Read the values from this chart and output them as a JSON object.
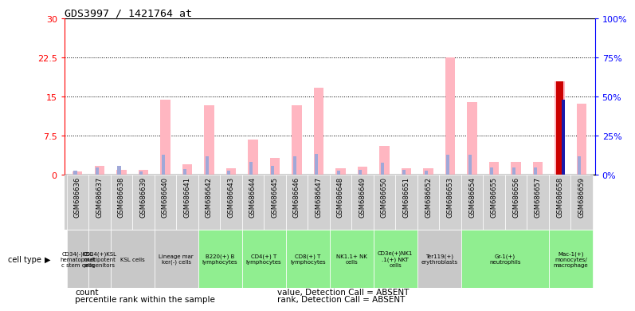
{
  "title": "GDS3997 / 1421764_at",
  "gsm_ids": [
    "GSM686636",
    "GSM686637",
    "GSM686638",
    "GSM686639",
    "GSM686640",
    "GSM686641",
    "GSM686642",
    "GSM686643",
    "GSM686644",
    "GSM686645",
    "GSM686646",
    "GSM686647",
    "GSM686648",
    "GSM686649",
    "GSM686650",
    "GSM686651",
    "GSM686652",
    "GSM686653",
    "GSM686654",
    "GSM686655",
    "GSM686656",
    "GSM686657",
    "GSM686658",
    "GSM686659"
  ],
  "value_absent": [
    0.7,
    1.8,
    1.0,
    0.9,
    14.5,
    2.0,
    13.3,
    1.3,
    6.8,
    3.3,
    13.3,
    16.7,
    1.3,
    1.5,
    5.5,
    1.3,
    1.3,
    22.5,
    14.0,
    2.5,
    2.5,
    2.5,
    18.0,
    13.7
  ],
  "rank_absent": [
    0.8,
    1.4,
    1.7,
    0.7,
    3.8,
    1.1,
    3.6,
    0.8,
    2.5,
    1.7,
    3.6,
    4.1,
    0.8,
    0.9,
    2.4,
    0.9,
    0.8,
    3.8,
    3.8,
    1.4,
    1.4,
    1.4,
    2.8,
    3.6
  ],
  "count_val": [
    0,
    0,
    0,
    0,
    0,
    0,
    0,
    0,
    0,
    0,
    0,
    0,
    0,
    0,
    0,
    0,
    0,
    0,
    0,
    0,
    0,
    0,
    18.0,
    0
  ],
  "percentile_rank": [
    0,
    0,
    0,
    0,
    0,
    0,
    0,
    0,
    0,
    0,
    0,
    0,
    0,
    0,
    0,
    0,
    0,
    0,
    0,
    0,
    0,
    0,
    14.5,
    0
  ],
  "ylim_left": [
    0,
    30
  ],
  "ylim_right": [
    0,
    100
  ],
  "yticks_left": [
    0,
    7.5,
    15,
    22.5,
    30
  ],
  "ytick_labels_left": [
    "0",
    "7.5",
    "15",
    "22.5",
    "30"
  ],
  "yticks_right": [
    0,
    25,
    50,
    75,
    100
  ],
  "ytick_labels_right": [
    "0%",
    "25%",
    "50%",
    "75%",
    "100%"
  ],
  "color_count": "#cc0000",
  "color_percentile": "#1a1aaa",
  "color_value_absent": "#ffb6c1",
  "color_rank_absent": "#a0a8d8",
  "groups": [
    {
      "cols": [
        0
      ],
      "color": "#c8c8c8",
      "label": "CD34(-)KSL\nhematopoiet\nc stem cells"
    },
    {
      "cols": [
        1
      ],
      "color": "#c8c8c8",
      "label": "CD34(+)KSL\nmultipotent\nprogenitors"
    },
    {
      "cols": [
        2,
        3
      ],
      "color": "#c8c8c8",
      "label": "KSL cells"
    },
    {
      "cols": [
        4,
        5
      ],
      "color": "#c8c8c8",
      "label": "Lineage mar\nker(-) cells"
    },
    {
      "cols": [
        6,
        7
      ],
      "color": "#90ee90",
      "label": "B220(+) B\nlymphocytes"
    },
    {
      "cols": [
        8,
        9
      ],
      "color": "#90ee90",
      "label": "CD4(+) T\nlymphocytes"
    },
    {
      "cols": [
        10,
        11
      ],
      "color": "#90ee90",
      "label": "CD8(+) T\nlymphocytes"
    },
    {
      "cols": [
        12,
        13
      ],
      "color": "#90ee90",
      "label": "NK1.1+ NK\ncells"
    },
    {
      "cols": [
        14,
        15
      ],
      "color": "#90ee90",
      "label": "CD3e(+)NK1\n.1(+) NKT\ncells"
    },
    {
      "cols": [
        16,
        17
      ],
      "color": "#c8c8c8",
      "label": "Ter119(+)\nerythroblasts"
    },
    {
      "cols": [
        18,
        19,
        20,
        21
      ],
      "color": "#90ee90",
      "label": "Gr-1(+)\nneutrophils"
    },
    {
      "cols": [
        22,
        23
      ],
      "color": "#90ee90",
      "label": "Mac-1(+)\nmonocytes/\nmacrophage"
    }
  ],
  "legend_items": [
    {
      "label": "count",
      "color": "#cc0000"
    },
    {
      "label": "percentile rank within the sample",
      "color": "#1a1aaa"
    },
    {
      "label": "value, Detection Call = ABSENT",
      "color": "#ffb6c1"
    },
    {
      "label": "rank, Detection Call = ABSENT",
      "color": "#a0a8d8"
    }
  ],
  "bg_color": "#ffffff",
  "gsm_bg": "#d0d0d0"
}
